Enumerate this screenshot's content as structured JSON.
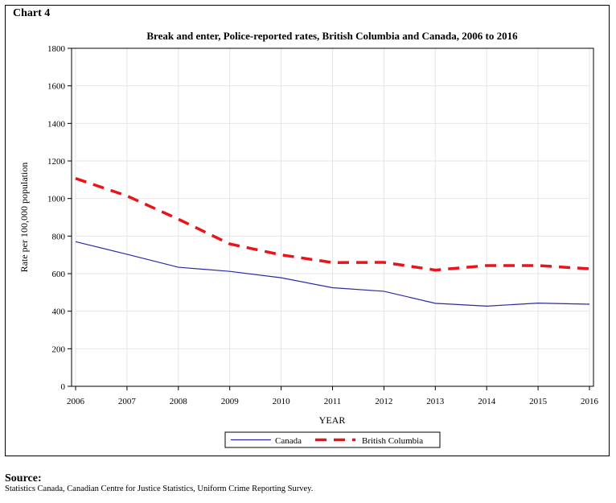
{
  "chart_label": "Chart 4",
  "source": {
    "heading": "Source:",
    "text": "Statistics Canada, Canadian Centre for Justice Statistics, Uniform Crime Reporting Survey."
  },
  "colors": {
    "canada": "#2a2aa8",
    "bc": "#e8141a",
    "grid": "#e6e6e6"
  },
  "chart_data": {
    "type": "line",
    "title": "Break and enter, Police-reported rates, British Columbia and Canada, 2006 to 2016",
    "xlabel": "YEAR",
    "ylabel": "Rate per 100,000 population",
    "x": [
      2006,
      2007,
      2008,
      2009,
      2010,
      2011,
      2012,
      2013,
      2014,
      2015,
      2016
    ],
    "ylim": [
      0,
      1800
    ],
    "yticks": [
      0,
      200,
      400,
      600,
      800,
      1000,
      1200,
      1400,
      1600,
      1800
    ],
    "grid": true,
    "legend_position": "bottom",
    "series": [
      {
        "name": "Canada",
        "style": "solid",
        "values": [
          770,
          703,
          634,
          612,
          578,
          525,
          506,
          442,
          427,
          443,
          437
        ]
      },
      {
        "name": "British Columbia",
        "style": "dashed",
        "values": [
          1107,
          1014,
          890,
          758,
          700,
          659,
          660,
          619,
          643,
          643,
          626
        ]
      }
    ]
  }
}
